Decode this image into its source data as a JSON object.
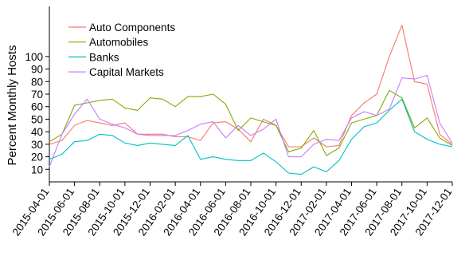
{
  "chart_data": {
    "type": "line",
    "title": "",
    "xlabel": "",
    "ylabel": "Percent Monthly Hosts",
    "x": [
      "2015-04-01",
      "2015-05-01",
      "2015-06-01",
      "2015-07-01",
      "2015-08-01",
      "2015-09-01",
      "2015-10-01",
      "2015-11-01",
      "2015-12-01",
      "2016-01-01",
      "2016-02-01",
      "2016-03-01",
      "2016-04-01",
      "2016-05-01",
      "2016-06-01",
      "2016-07-01",
      "2016-08-01",
      "2016-09-01",
      "2016-10-01",
      "2016-11-01",
      "2016-12-01",
      "2017-01-01",
      "2017-02-01",
      "2017-03-01",
      "2017-04-01",
      "2017-05-01",
      "2017-06-01",
      "2017-07-01",
      "2017-08-01",
      "2017-09-01",
      "2017-10-01",
      "2017-11-01",
      "2017-12-01"
    ],
    "xticks": [
      "2015-04-01",
      "2015-06-01",
      "2015-08-01",
      "2015-10-01",
      "2015-12-01",
      "2016-02-01",
      "2016-04-01",
      "2016-06-01",
      "2016-08-01",
      "2016-10-01",
      "2016-12-01",
      "2017-02-01",
      "2017-04-01",
      "2017-06-01",
      "2017-08-01",
      "2017-10-01",
      "2017-12-01"
    ],
    "yticks": [
      10,
      20,
      30,
      40,
      50,
      60,
      70,
      80,
      90,
      100
    ],
    "ylim": [
      0,
      140
    ],
    "grid": false,
    "legend_position": "top-left",
    "series": [
      {
        "name": "Auto Components",
        "color": "#f8766d",
        "values": [
          30,
          33,
          45,
          49,
          47,
          45,
          47,
          38,
          38,
          38,
          36,
          36,
          33,
          47,
          48,
          42,
          32,
          50,
          45,
          28,
          28,
          35,
          28,
          29,
          53,
          63,
          70,
          100,
          125,
          80,
          78,
          38,
          30
        ]
      },
      {
        "name": "Automobiles",
        "color": "#7cae00",
        "values": [
          32,
          38,
          61,
          63,
          65,
          66,
          59,
          57,
          67,
          66,
          60,
          68,
          68,
          70,
          62,
          41,
          51,
          48,
          45,
          24,
          27,
          41,
          21,
          27,
          47,
          50,
          53,
          73,
          67,
          43,
          51,
          35,
          29
        ]
      },
      {
        "name": "Banks",
        "color": "#00bfc4",
        "values": [
          18,
          22,
          32,
          33,
          38,
          37,
          31,
          29,
          31,
          30,
          29,
          37,
          18,
          20,
          18,
          17,
          17,
          23,
          16,
          7,
          6,
          12,
          8,
          17,
          34,
          44,
          47,
          57,
          66,
          40,
          34,
          30,
          28
        ]
      },
      {
        "name": "Capital Markets",
        "color": "#c77cff",
        "values": [
          12,
          38,
          54,
          66,
          50,
          46,
          43,
          38,
          37,
          37,
          37,
          41,
          46,
          48,
          35,
          45,
          37,
          42,
          50,
          20,
          20,
          30,
          34,
          33,
          51,
          56,
          53,
          58,
          83,
          82,
          85,
          47,
          31
        ]
      }
    ]
  }
}
